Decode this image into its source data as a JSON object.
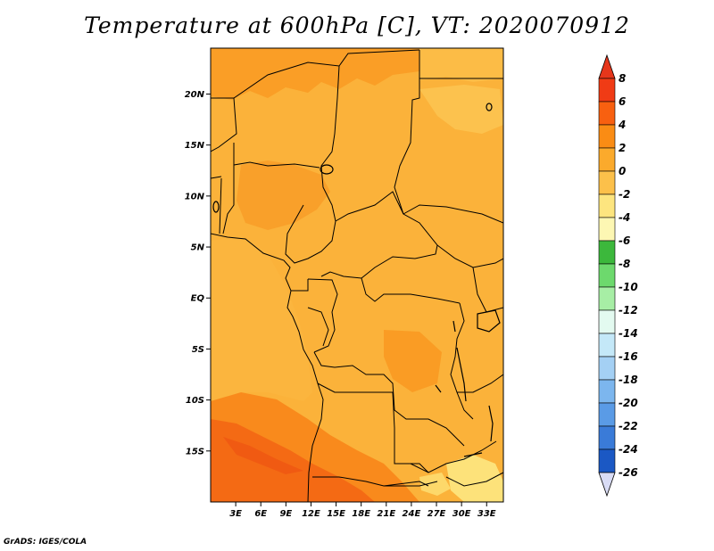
{
  "title": "Temperature at 600hPa [C], VT: 2020070912",
  "credit": "GrADS: IGES/COLA",
  "map": {
    "variable": "Temperature at 600hPa",
    "units": "C",
    "valid_time": "2020070912",
    "lon_range": [
      0,
      35
    ],
    "lat_range": [
      -20,
      24.5
    ],
    "lat_ticks": [
      {
        "value": 20,
        "label": "20N"
      },
      {
        "value": 15,
        "label": "15N"
      },
      {
        "value": 10,
        "label": "10N"
      },
      {
        "value": 5,
        "label": "5N"
      },
      {
        "value": 0,
        "label": "EQ"
      },
      {
        "value": -5,
        "label": "5S"
      },
      {
        "value": -10,
        "label": "10S"
      },
      {
        "value": -15,
        "label": "15S"
      }
    ],
    "lon_ticks": [
      {
        "value": 3,
        "label": "3E"
      },
      {
        "value": 6,
        "label": "6E"
      },
      {
        "value": 9,
        "label": "9E"
      },
      {
        "value": 12,
        "label": "12E"
      },
      {
        "value": 15,
        "label": "15E"
      },
      {
        "value": 18,
        "label": "18E"
      },
      {
        "value": 21,
        "label": "21E"
      },
      {
        "value": 24,
        "label": "24E"
      },
      {
        "value": 27,
        "label": "27E"
      },
      {
        "value": 30,
        "label": "30E"
      },
      {
        "value": 33,
        "label": "33E"
      }
    ],
    "field_summary": "Mostly 2 to 4 C over central Africa; 4 to 6 C in the southwest (Angola/Namibia); 0 to 2 C patches in southeast and isolated highlands."
  },
  "colorbar": {
    "levels": [
      "8",
      "6",
      "4",
      "2",
      "0",
      "-2",
      "-4",
      "-6",
      "-8",
      "-10",
      "-12",
      "-14",
      "-16",
      "-18",
      "-20",
      "-22",
      "-24",
      "-26"
    ],
    "colors": [
      "#f03b15",
      "#f86010",
      "#fa8c14",
      "#fbaa2c",
      "#fcc04a",
      "#fde57f",
      "#fdf7b3",
      "#3cb83c",
      "#6dd96d",
      "#a7eea5",
      "#e3faf0",
      "#c4e8f8",
      "#a4d0f4",
      "#7cb6ee",
      "#5a9be6",
      "#3a7bd8",
      "#1b58c4",
      "#0d3aa4",
      "#0a1f7a"
    ],
    "top_arrow_color": "#e6361b",
    "bottom_arrow_color": "#d9dcf5"
  },
  "colors": {
    "warm_2_4": "#fbb23a",
    "warm_4_6": "#fa9a22",
    "warm_6_8": "#f57415",
    "cool_0_2": "#fcc84e",
    "pale_m2_0": "#fde88a"
  }
}
